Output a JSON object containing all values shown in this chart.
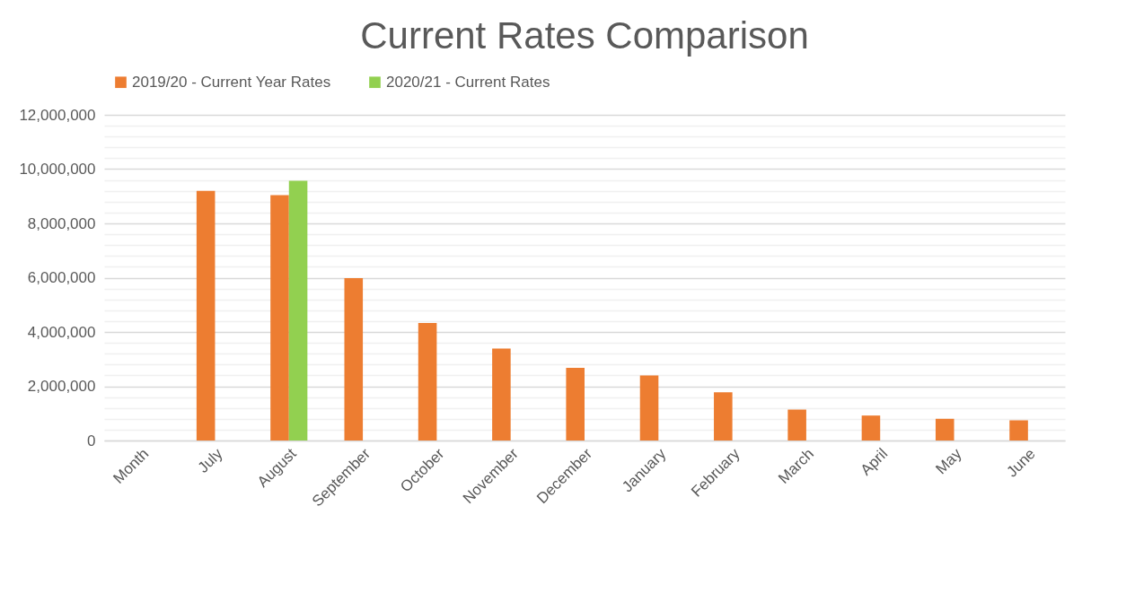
{
  "chart_data": {
    "type": "bar",
    "title": "Current Rates Comparison",
    "categories": [
      "Month",
      "July",
      "August",
      "September",
      "October",
      "November",
      "December",
      "January",
      "February",
      "March",
      "April",
      "May",
      "June"
    ],
    "series": [
      {
        "name": "2019/20 - Current Year Rates",
        "color": "#ed7d31",
        "values": [
          null,
          9200000,
          9040000,
          5980000,
          4330000,
          3390000,
          2680000,
          2400000,
          1780000,
          1140000,
          920000,
          800000,
          740000
        ]
      },
      {
        "name": "2020/21 - Current Rates",
        "color": "#92d050",
        "values": [
          null,
          null,
          9570000,
          null,
          null,
          null,
          null,
          null,
          null,
          null,
          null,
          null,
          null
        ]
      }
    ],
    "ylim": [
      0,
      12000000
    ],
    "yticks": [
      0,
      {
        "value": 400000,
        "label": null
      },
      {
        "value": 800000,
        "label": null
      },
      {
        "value": 1200000,
        "label": null
      },
      {
        "value": 1600000,
        "label": null
      },
      {
        "value": 2000000,
        "label": "2,000,000"
      },
      {
        "value": 2400000,
        "label": null
      },
      {
        "value": 2800000,
        "label": null
      },
      {
        "value": 3200000,
        "label": null
      },
      {
        "value": 3600000,
        "label": null
      },
      {
        "value": 4000000,
        "label": "4,000,000"
      },
      {
        "value": 4400000,
        "label": null
      },
      {
        "value": 4800000,
        "label": null
      },
      {
        "value": 5200000,
        "label": null
      },
      {
        "value": 5600000,
        "label": null
      },
      {
        "value": 6000000,
        "label": "6,000,000"
      },
      {
        "value": 6400000,
        "label": null
      },
      {
        "value": 6800000,
        "label": null
      },
      {
        "value": 7200000,
        "label": null
      },
      {
        "value": 7600000,
        "label": null
      },
      {
        "value": 8000000,
        "label": "8,000,000"
      },
      {
        "value": 8400000,
        "label": null
      },
      {
        "value": 8800000,
        "label": null
      },
      {
        "value": 9200000,
        "label": null
      },
      {
        "value": 9600000,
        "label": null
      },
      {
        "value": 10000000,
        "label": "10,000,000"
      },
      {
        "value": 10400000,
        "label": null
      },
      {
        "value": 10800000,
        "label": null
      },
      {
        "value": 11200000,
        "label": null
      },
      {
        "value": 11600000,
        "label": null
      },
      {
        "value": 12000000,
        "label": "12,000,000"
      }
    ],
    "grid": "y",
    "legend": "top"
  }
}
